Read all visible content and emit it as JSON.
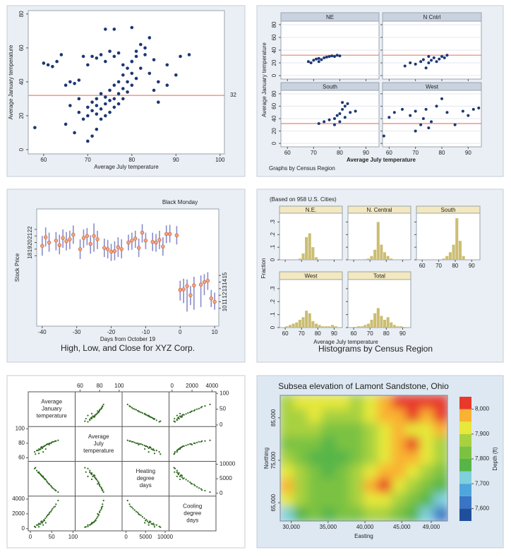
{
  "chart_data": [
    {
      "type": "scatter",
      "xlabel": "Average July temperature",
      "ylabel": "Average January temperature",
      "color": "#1c3774",
      "refline": 32,
      "refcolor": "#e8846c",
      "xlim": [
        56.5,
        101
      ],
      "ylim": [
        -2.5,
        82
      ],
      "xticks": [
        60,
        70,
        80,
        90,
        100
      ],
      "yticks": [
        0,
        20,
        40,
        60,
        80
      ],
      "x": [
        58,
        60,
        61,
        62,
        63,
        64,
        65,
        66,
        67,
        68,
        69,
        70,
        71,
        72,
        73,
        74,
        75,
        76,
        77,
        78,
        79,
        80,
        81,
        83,
        85,
        88,
        91,
        93,
        65,
        67,
        68,
        69,
        70,
        70,
        71,
        71,
        72,
        72,
        72,
        73,
        73,
        73,
        74,
        74,
        74,
        75,
        75,
        75,
        76,
        76,
        76,
        77,
        77,
        77,
        78,
        78,
        78,
        79,
        79,
        80,
        80,
        80,
        81,
        81,
        82,
        82,
        83,
        84,
        84,
        85,
        86,
        70,
        71,
        72,
        74,
        76,
        80,
        86,
        88,
        90,
        66,
        68
      ],
      "y": [
        13,
        51,
        50,
        49,
        52,
        56,
        38,
        40,
        39,
        41,
        55,
        50,
        55,
        54,
        56,
        52,
        58,
        55,
        57,
        50,
        48,
        52,
        55,
        56,
        53,
        50,
        55,
        56,
        15,
        10,
        22,
        18,
        20,
        25,
        23,
        28,
        21,
        26,
        30,
        18,
        24,
        33,
        20,
        27,
        31,
        22,
        29,
        35,
        25,
        30,
        38,
        27,
        33,
        40,
        30,
        36,
        44,
        34,
        40,
        38,
        45,
        52,
        42,
        58,
        48,
        62,
        60,
        66,
        45,
        35,
        28,
        5,
        8,
        12,
        71,
        71,
        72,
        40,
        38,
        44,
        26,
        30
      ]
    },
    {
      "type": "scatter-by",
      "xlabel": "Average July temperature",
      "ylabel": "Average January temperature",
      "note": "Graphs by Census Region",
      "color": "#1c3774",
      "refline": 32,
      "refcolor": "#e8846c",
      "xlim": [
        57.5,
        95
      ],
      "ylim": [
        -5.5,
        85.5
      ],
      "xticks": [
        60,
        70,
        80,
        90
      ],
      "yticks": [
        0,
        20,
        40,
        60,
        80
      ],
      "panels": [
        {
          "name": "NE",
          "x": [
            68,
            70,
            71,
            72,
            73,
            74,
            75,
            76,
            77,
            78,
            79,
            80,
            69,
            72
          ],
          "y": [
            22,
            24,
            26,
            27,
            25,
            28,
            29,
            30,
            31,
            30,
            32,
            31,
            20,
            22
          ]
        },
        {
          "name": "N Cntrl",
          "x": [
            66,
            68,
            70,
            72,
            73,
            74,
            75,
            76,
            77,
            78,
            79,
            80,
            81,
            82,
            75
          ],
          "y": [
            15,
            20,
            18,
            22,
            25,
            12,
            20,
            24,
            28,
            22,
            26,
            30,
            28,
            32,
            30
          ]
        },
        {
          "name": "South",
          "x": [
            72,
            74,
            76,
            78,
            79,
            80,
            81,
            82,
            83,
            80,
            82,
            84,
            86,
            78,
            81
          ],
          "y": [
            32,
            35,
            38,
            40,
            45,
            48,
            55,
            60,
            64,
            35,
            42,
            50,
            52,
            30,
            66
          ]
        },
        {
          "name": "West",
          "x": [
            58,
            60,
            62,
            65,
            68,
            70,
            72,
            73,
            74,
            75,
            76,
            78,
            80,
            82,
            85,
            88,
            90,
            92,
            94,
            70
          ],
          "y": [
            12,
            42,
            50,
            55,
            45,
            52,
            30,
            40,
            55,
            25,
            35,
            60,
            72,
            50,
            30,
            52,
            45,
            55,
            57,
            20
          ]
        }
      ]
    },
    {
      "type": "hilo",
      "title": "High, Low, and Close for XYZ Corp.",
      "xlabel": "Days from October 19",
      "ylabel": "Stock Price",
      "annotation": "Black Monday",
      "color": "#8a8cc8",
      "close_color": "#f4a582",
      "xlim": [
        -41.6,
        11.2
      ],
      "ylim": [
        7.3,
        25.1
      ],
      "y2lim": [
        7.3,
        25.1
      ],
      "xticks": [
        -40,
        -30,
        -20,
        -10,
        0,
        10
      ],
      "yticks": [
        18,
        19,
        20,
        21,
        22
      ],
      "y2ticks": [
        10,
        11,
        12,
        13,
        14,
        15
      ],
      "x": [
        -40,
        -39,
        -38,
        -36,
        -35,
        -34,
        -33,
        -32,
        -31,
        -29,
        -28,
        -27,
        -26,
        -25,
        -24,
        -22,
        -21,
        -20,
        -19,
        -18,
        -17,
        -15,
        -14,
        -13,
        -12,
        -11,
        -10,
        -8,
        -7,
        -6,
        -5,
        -4,
        -3,
        -1,
        0,
        1,
        2,
        3,
        4,
        6,
        7,
        8,
        9,
        10
      ],
      "high": [
        21.0,
        22.3,
        21.5,
        21.6,
        21.2,
        22.0,
        21.6,
        21.8,
        22.6,
        20.5,
        22.0,
        22.2,
        21.1,
        22.9,
        21.8,
        20.6,
        20.4,
        19.8,
        20.2,
        20.8,
        20.5,
        21.2,
        21.5,
        21.8,
        20.6,
        22.8,
        21.5,
        21.5,
        21.3,
        21.8,
        20.8,
        22.6,
        22.7,
        22.5,
        14.2,
        14.5,
        14.4,
        13.4,
        14.8,
        15.0,
        15.2,
        15.5,
        12.8,
        12.4
      ],
      "low": [
        18.0,
        19.4,
        18.6,
        18.8,
        18.2,
        19.2,
        18.8,
        19.0,
        19.8,
        17.5,
        19.2,
        19.6,
        18.3,
        18.6,
        19.0,
        17.8,
        17.6,
        17.2,
        17.3,
        17.8,
        17.6,
        18.8,
        18.9,
        19.2,
        17.8,
        20.0,
        19.0,
        18.7,
        18.6,
        19.0,
        18.0,
        19.9,
        20.0,
        19.7,
        11.2,
        10.8,
        9.5,
        10.5,
        9.8,
        10.2,
        12.0,
        12.8,
        10.2,
        9.8
      ],
      "close": [
        19.5,
        20.8,
        20.0,
        20.3,
        19.6,
        20.7,
        20.2,
        20.5,
        21.2,
        19.0,
        20.7,
        21.0,
        19.8,
        21.0,
        20.5,
        19.2,
        19.0,
        18.6,
        18.7,
        19.3,
        19.0,
        20.0,
        20.3,
        20.6,
        19.2,
        21.5,
        20.3,
        20.1,
        20.0,
        20.4,
        19.4,
        21.3,
        21.3,
        21.1,
        12.8,
        12.9,
        13.4,
        12.0,
        13.5,
        13.6,
        14.0,
        14.2,
        11.5,
        11.0
      ]
    },
    {
      "type": "histogram-panels",
      "title": "Histograms by Census Region",
      "note": "(Based on 958 U.S. Cities)",
      "xlabel": "Average July temperature",
      "ylabel": "Fraction",
      "color": "#cbbd72",
      "xlim": [
        56.5,
        95
      ],
      "ylim": [
        0,
        0.37
      ],
      "xticks": [
        60,
        70,
        80,
        90
      ],
      "yticks": [
        0,
        {
          "value": 0.1,
          "label": ".1"
        },
        {
          "value": 0.2,
          "label": ".2"
        },
        {
          "value": 0.3,
          "label": ".3"
        }
      ],
      "bins": [
        58,
        60,
        62,
        64,
        66,
        68,
        70,
        72,
        74,
        76,
        78,
        80,
        82,
        84,
        86,
        88,
        90,
        92,
        94
      ],
      "panels": [
        {
          "name": "N.E.",
          "values": [
            0,
            0,
            0,
            0,
            0,
            0.01,
            0.05,
            0.18,
            0.21,
            0.1,
            0.02,
            0,
            0,
            0,
            0,
            0,
            0,
            0
          ]
        },
        {
          "name": "N. Central",
          "values": [
            0,
            0,
            0,
            0,
            0.005,
            0.01,
            0.03,
            0.08,
            0.3,
            0.12,
            0.06,
            0.03,
            0.01,
            0,
            0,
            0,
            0,
            0
          ]
        },
        {
          "name": "South",
          "values": [
            0,
            0,
            0,
            0,
            0,
            0,
            0,
            0.01,
            0.03,
            0.06,
            0.12,
            0.33,
            0.15,
            0.03,
            0,
            0,
            0,
            0
          ]
        },
        {
          "name": "West",
          "values": [
            0,
            0.01,
            0.02,
            0.03,
            0.04,
            0.06,
            0.08,
            0.13,
            0.11,
            0.05,
            0.03,
            0.02,
            0.01,
            0.01,
            0.01,
            0.02,
            0.01,
            0
          ]
        },
        {
          "name": "Total",
          "values": [
            0,
            0.005,
            0.01,
            0.01,
            0.02,
            0.03,
            0.06,
            0.11,
            0.15,
            0.09,
            0.06,
            0.08,
            0.04,
            0.02,
            0.01,
            0.01,
            0.005,
            0
          ]
        }
      ]
    },
    {
      "type": "scatter-matrix",
      "color": "#2d6a1f",
      "variables": [
        {
          "label_lines": [
            "Average",
            "January",
            "temperature"
          ],
          "lim": [
            -5,
            105
          ],
          "ticks": [
            0,
            50,
            100
          ],
          "values": [
            10,
            15,
            20,
            22,
            25,
            28,
            30,
            32,
            35,
            38,
            40,
            45,
            50,
            55,
            60,
            65,
            18,
            24,
            27,
            33,
            42,
            48,
            52,
            20,
            30,
            36,
            12,
            26,
            44,
            58
          ]
        },
        {
          "label_lines": [
            "Average",
            "July",
            "temperature"
          ],
          "lim": [
            55,
            103
          ],
          "ticks": [
            60,
            80,
            100
          ],
          "values": [
            68,
            70,
            72,
            71,
            74,
            73,
            75,
            76,
            77,
            78,
            79,
            80,
            81,
            82,
            83,
            84,
            70,
            72,
            74,
            76,
            79,
            80,
            82,
            66,
            68,
            72,
            65,
            75,
            78,
            83
          ]
        },
        {
          "label_lines": [
            "Heating",
            "degree",
            "days"
          ],
          "lim": [
            -1000,
            11000
          ],
          "ticks": [
            0,
            5000,
            10000
          ],
          "values": [
            8500,
            7800,
            7000,
            6800,
            6300,
            5800,
            5500,
            5200,
            4700,
            4200,
            3800,
            3000,
            2200,
            1500,
            900,
            400,
            7200,
            6500,
            6000,
            5000,
            3400,
            2600,
            1800,
            7300,
            5800,
            4800,
            8800,
            6100,
            3200,
            1100
          ]
        },
        {
          "label_lines": [
            "Cooling",
            "degree",
            "days"
          ],
          "lim": [
            -300,
            4400
          ],
          "ticks": [
            0,
            2000,
            4000
          ],
          "values": [
            300,
            500,
            700,
            600,
            900,
            800,
            1000,
            1200,
            1400,
            1600,
            1800,
            2200,
            2500,
            2900,
            3300,
            3800,
            500,
            650,
            850,
            1100,
            1900,
            2300,
            2700,
            250,
            500,
            800,
            200,
            1000,
            2000,
            3000
          ]
        }
      ]
    },
    {
      "type": "contour",
      "title": "Subsea elevation of Lamont Sandstone, Ohio",
      "xlabel": "Easting",
      "ylabel": "Northing",
      "legend_label": "Depth (ft)",
      "xlim": [
        28500,
        51200
      ],
      "ylim": [
        60700,
        90300
      ],
      "xticks": [
        {
          "value": 30000,
          "label": "30,000"
        },
        {
          "value": 35000,
          "label": "35,000"
        },
        {
          "value": 40000,
          "label": "40,000"
        },
        {
          "value": 45000,
          "label": "45,000"
        },
        {
          "value": 49000,
          "label": "49,000"
        }
      ],
      "yticks": [
        {
          "value": 65000,
          "label": "65,000"
        },
        {
          "value": 75000,
          "label": "75,000"
        },
        {
          "value": 85000,
          "label": "85,000"
        }
      ],
      "levels": [
        7550,
        7600,
        7650,
        7700,
        7750,
        7800,
        7850,
        7900,
        7950,
        8000,
        8050
      ],
      "colors": [
        "#1f4e9c",
        "#3a74c4",
        "#4fa6dc",
        "#7fd0dc",
        "#57b548",
        "#7cc242",
        "#a8d13f",
        "#e6e83a",
        "#f9b233",
        "#e8392a"
      ],
      "cbticks": [
        {
          "value": 7600,
          "label": "7,600"
        },
        {
          "value": 7700,
          "label": "7,700"
        },
        {
          "value": 7800,
          "label": "7,800"
        },
        {
          "value": 7900,
          "label": "7,900"
        },
        {
          "value": 8000,
          "label": "8,000"
        }
      ],
      "x": [
        29450,
        31350,
        33250,
        35150,
        37050,
        38950,
        40850,
        42750,
        44650,
        46550,
        48450,
        50350
      ],
      "y": [
        88650,
        85350,
        82050,
        78750,
        75450,
        72150,
        68850,
        65550,
        62250
      ],
      "z": [
        [
          7880,
          7900,
          7920,
          7910,
          7900,
          7880,
          7920,
          7960,
          8010,
          8030,
          8020,
          8000
        ],
        [
          7870,
          7890,
          7900,
          7890,
          7870,
          7860,
          7900,
          7950,
          7980,
          8000,
          7990,
          8020
        ],
        [
          7850,
          7860,
          7850,
          7830,
          7820,
          7840,
          7880,
          7930,
          7960,
          7940,
          7920,
          7950
        ],
        [
          7830,
          7820,
          7800,
          7790,
          7800,
          7830,
          7870,
          7920,
          7980,
          8020,
          7920,
          7880
        ],
        [
          7860,
          7830,
          7790,
          7780,
          7790,
          7830,
          7880,
          7940,
          7990,
          7980,
          7900,
          7850
        ],
        [
          7900,
          7860,
          7810,
          7790,
          7800,
          7850,
          7920,
          7980,
          7950,
          7900,
          7850,
          7800
        ],
        [
          7960,
          7880,
          7830,
          7810,
          7820,
          7880,
          7990,
          8020,
          7940,
          7870,
          7820,
          7760
        ],
        [
          7900,
          7850,
          7820,
          7810,
          7820,
          7860,
          7930,
          7920,
          7870,
          7830,
          7780,
          7700
        ],
        [
          7720,
          7780,
          7800,
          7790,
          7800,
          7830,
          7860,
          7850,
          7820,
          7790,
          7720,
          7600
        ]
      ]
    }
  ]
}
